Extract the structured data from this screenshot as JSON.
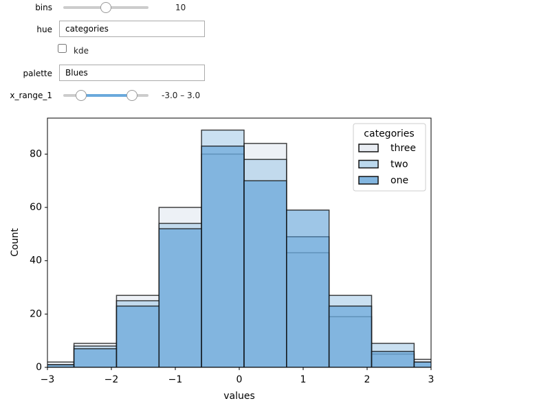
{
  "widgets": {
    "bins": {
      "label": "bins",
      "value": 10
    },
    "hue": {
      "label": "hue",
      "value": "categories"
    },
    "kde": {
      "label": "kde"
    },
    "palette": {
      "label": "palette",
      "value": "Blues"
    },
    "x_range": {
      "label": "x_range_1",
      "value": "-3.0 – 3.0"
    }
  },
  "chart_data": {
    "type": "histogram",
    "xlabel": "values",
    "ylabel": "Count",
    "bins": [
      -3.25,
      -2.585,
      -1.92,
      -1.255,
      -0.59,
      0.075,
      0.74,
      1.405,
      2.07,
      2.735,
      3.4
    ],
    "series": [
      {
        "name": "three",
        "color": "#dfe6ee",
        "values": [
          2,
          9,
          27,
          60,
          80,
          84,
          43,
          19,
          5,
          3
        ]
      },
      {
        "name": "two",
        "color": "#9ec7e6",
        "values": [
          1,
          8,
          25,
          54,
          89,
          78,
          49,
          27,
          9,
          2
        ]
      },
      {
        "name": "one",
        "color": "#4f97d3",
        "values": [
          1,
          7,
          23,
          52,
          83,
          70,
          59,
          23,
          6,
          2
        ]
      }
    ],
    "xlim": [
      -3,
      3
    ],
    "xticks": [
      {
        "value": -3,
        "label": "−3"
      },
      {
        "value": -2,
        "label": "−2"
      },
      {
        "value": -1,
        "label": "−1"
      },
      0,
      1,
      2,
      3
    ],
    "ylim": [
      0,
      93.5
    ],
    "yticks": [
      0,
      20,
      40,
      60,
      80
    ],
    "legend": {
      "title": "categories",
      "position": "upper right"
    },
    "grid": false
  }
}
